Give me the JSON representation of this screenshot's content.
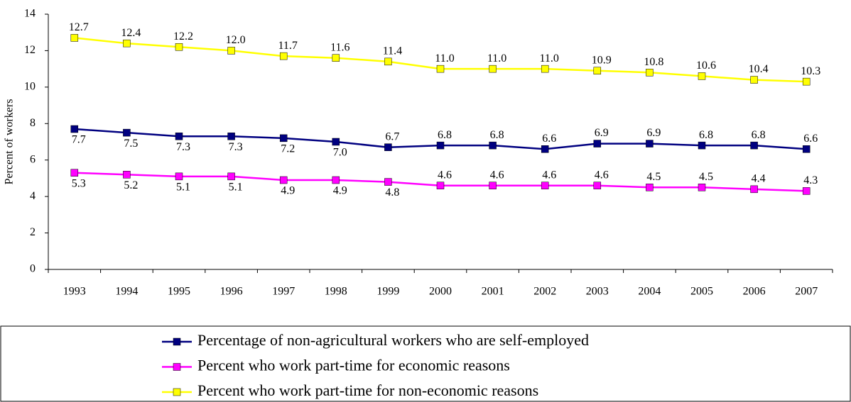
{
  "chart_data": {
    "type": "line",
    "y_label": "Percent of workers",
    "categories": [
      "1993",
      "1994",
      "1995",
      "1996",
      "1997",
      "1998",
      "1999",
      "2000",
      "2001",
      "2002",
      "2003",
      "2004",
      "2005",
      "2006",
      "2007"
    ],
    "ylim": [
      0,
      14
    ],
    "yticks": [
      0,
      2,
      4,
      6,
      8,
      10,
      12,
      14
    ],
    "series": [
      {
        "name": "Percentage of non-agricultural workers who are self-employed",
        "color": "#000080",
        "values": [
          7.7,
          7.5,
          7.3,
          7.3,
          7.2,
          7.0,
          6.7,
          6.8,
          6.8,
          6.6,
          6.9,
          6.9,
          6.8,
          6.8,
          6.6
        ],
        "value_labels": [
          "7.7",
          "7.5",
          "7.3",
          "7.3",
          "7.2",
          "7.0",
          "6.7",
          "6.8",
          "6.8",
          "6.6",
          "6.9",
          "6.9",
          "6.8",
          "6.8",
          "6.6"
        ]
      },
      {
        "name": "Percent who work part-time for economic reasons",
        "color": "#ff00ff",
        "values": [
          5.3,
          5.2,
          5.1,
          5.1,
          4.9,
          4.9,
          4.8,
          4.6,
          4.6,
          4.6,
          4.6,
          4.5,
          4.5,
          4.4,
          4.3
        ],
        "value_labels": [
          "5.3",
          "5.2",
          "5.1",
          "5.1",
          "4.9",
          "4.9",
          "4.8",
          "4.6",
          "4.6",
          "4.6",
          "4.6",
          "4.5",
          "4.5",
          "4.4",
          "4.3"
        ]
      },
      {
        "name": "Percent who work part-time for non-economic reasons",
        "color": "#ffff00",
        "values": [
          12.7,
          12.4,
          12.2,
          12.0,
          11.7,
          11.6,
          11.4,
          11.0,
          11.0,
          11.0,
          10.9,
          10.8,
          10.6,
          10.4,
          10.3
        ],
        "value_labels": [
          "12.7",
          "12.4",
          "12.2",
          "12.0",
          "11.7",
          "11.6",
          "11.4",
          "11.0",
          "11.0",
          "11.0",
          "10.9",
          "10.8",
          "10.6",
          "10.4",
          "10.3"
        ]
      }
    ]
  }
}
